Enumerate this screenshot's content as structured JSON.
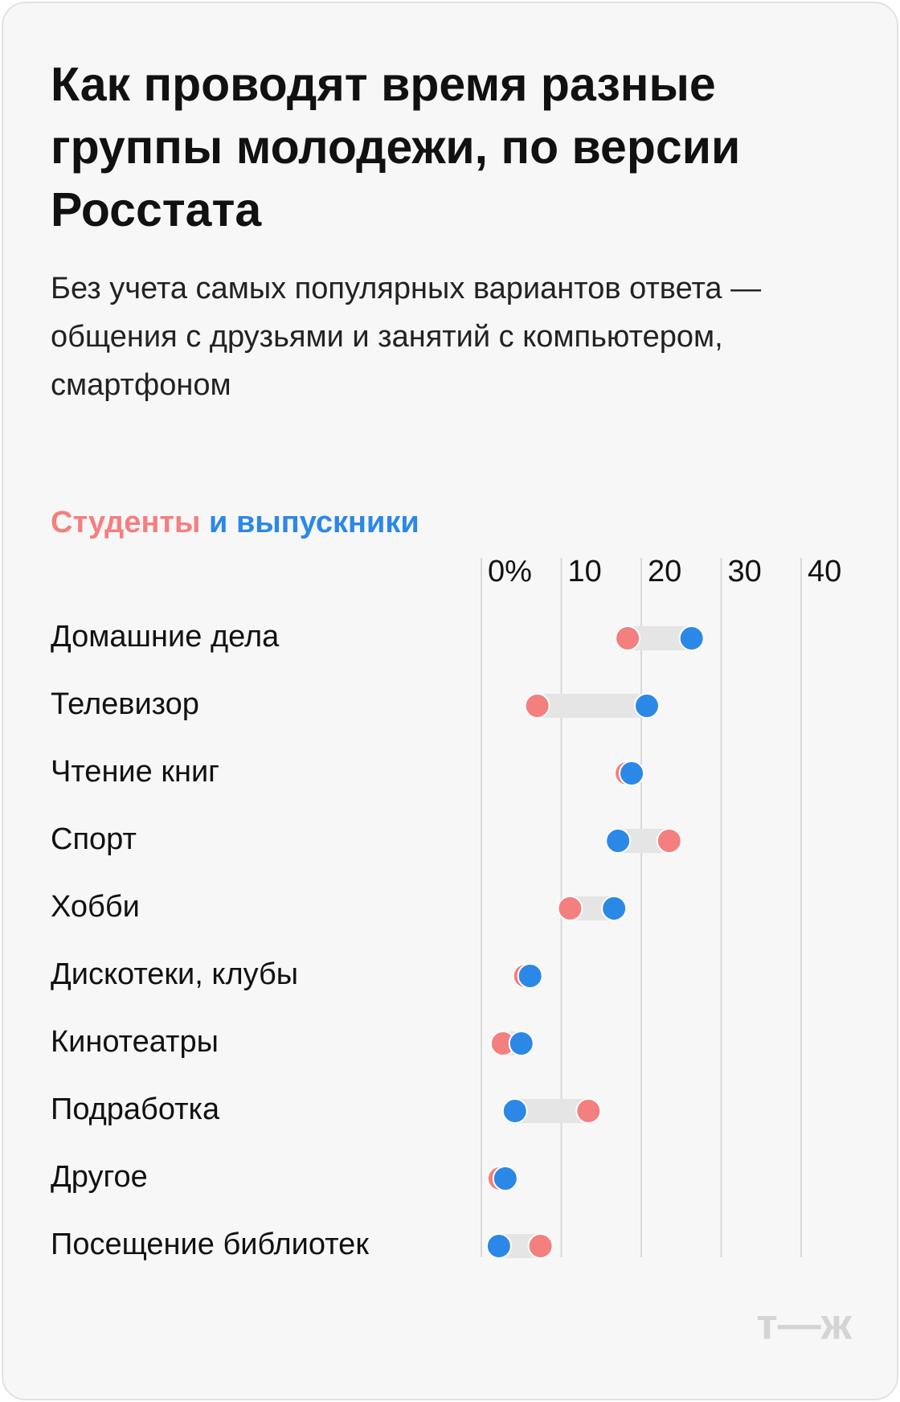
{
  "chart_data": {
    "type": "dumbbell",
    "title": "Как проводят время разные группы молодежи, по версии Росстата",
    "subtitle": "Без учета самых популярных вариантов ответа — общения с друзьями и занятий с компьютером, смартфоном",
    "categories": [
      "Домашние дела",
      "Телевизор",
      "Чтение книг",
      "Спорт",
      "Хобби",
      "Дискотеки, клубы",
      "Кинотеатры",
      "Подработка",
      "Другое",
      "Посещение библиотек"
    ],
    "series": [
      {
        "name": "Студенты",
        "color": "#f47f7f",
        "values": [
          18.3,
          7.0,
          18.2,
          23.5,
          11.1,
          5.5,
          2.7,
          13.4,
          2.3,
          7.4
        ]
      },
      {
        "name": "и выпускники",
        "color": "#2c88e6",
        "values": [
          26.3,
          20.7,
          18.8,
          17.1,
          16.6,
          6.1,
          5.0,
          4.2,
          3.0,
          2.2
        ]
      }
    ],
    "xlim": [
      0,
      40
    ],
    "xticks": [
      {
        "value": 0,
        "label": "0%"
      },
      10,
      20,
      30,
      40
    ],
    "grid": true,
    "logo": "т—ж"
  }
}
